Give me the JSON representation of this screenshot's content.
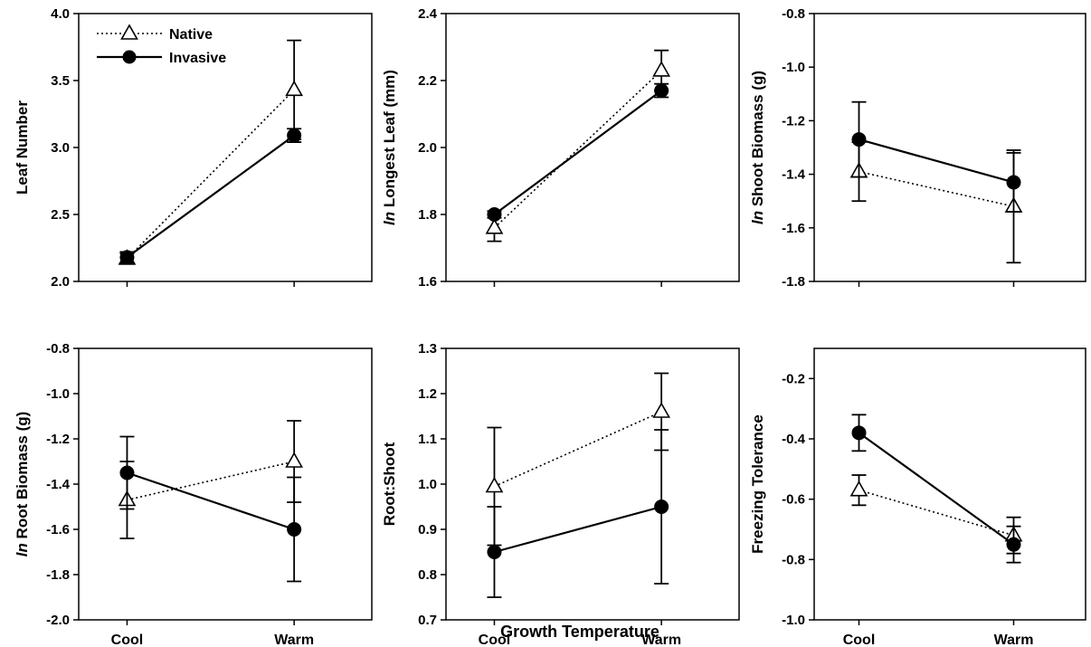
{
  "figure": {
    "xlabel": "Growth Temperature"
  },
  "chart_data": [
    {
      "type": "line",
      "ylabel": "Leaf Number",
      "ylabel_prefix": "",
      "categories": [
        "Cool",
        "Warm"
      ],
      "ylim": [
        2.0,
        4.0
      ],
      "yticks": [
        "2.0",
        "2.5",
        "3.0",
        "3.5",
        "4.0"
      ],
      "legend": "top-left",
      "series": [
        {
          "name": "Native",
          "marker": "open-triangle",
          "line": "dotted",
          "values": [
            2.17,
            3.43
          ],
          "err": [
            0.04,
            0.37
          ]
        },
        {
          "name": "Invasive",
          "marker": "filled-circle",
          "line": "solid",
          "values": [
            2.18,
            3.09
          ],
          "err": [
            0.04,
            0.05
          ]
        }
      ]
    },
    {
      "type": "line",
      "ylabel": "Longest Leaf (mm)",
      "ylabel_prefix": "ln",
      "categories": [
        "Cool",
        "Warm"
      ],
      "ylim": [
        1.6,
        2.4
      ],
      "yticks": [
        "1.6",
        "1.8",
        "2.0",
        "2.2",
        "2.4"
      ],
      "series": [
        {
          "name": "Native",
          "marker": "open-triangle",
          "line": "dotted",
          "values": [
            1.76,
            2.23
          ],
          "err": [
            0.04,
            0.06
          ]
        },
        {
          "name": "Invasive",
          "marker": "filled-circle",
          "line": "solid",
          "values": [
            1.8,
            2.17
          ],
          "err": [
            0.01,
            0.02
          ]
        }
      ]
    },
    {
      "type": "line",
      "ylabel": "Shoot Biomass (g)",
      "ylabel_prefix": "ln",
      "categories": [
        "Cool",
        "Warm"
      ],
      "ylim": [
        -1.8,
        -0.8
      ],
      "yticks": [
        "-1.8",
        "-1.6",
        "-1.4",
        "-1.2",
        "-1.0",
        "-0.8"
      ],
      "series": [
        {
          "name": "Native",
          "marker": "open-triangle",
          "line": "dotted",
          "values": [
            -1.39,
            -1.52
          ],
          "err": [
            0.11,
            0.21
          ]
        },
        {
          "name": "Invasive",
          "marker": "filled-circle",
          "line": "solid",
          "values": [
            -1.27,
            -1.43
          ],
          "err": [
            0.14,
            0.11
          ]
        }
      ]
    },
    {
      "type": "line",
      "ylabel": "Root Biomass (g)",
      "ylabel_prefix": "ln",
      "categories": [
        "Cool",
        "Warm"
      ],
      "ylim": [
        -2.0,
        -0.8
      ],
      "yticks": [
        "-2.0",
        "-1.8",
        "-1.6",
        "-1.4",
        "-1.2",
        "-1.0",
        "-0.8"
      ],
      "series": [
        {
          "name": "Native",
          "marker": "open-triangle",
          "line": "dotted",
          "values": [
            -1.47,
            -1.3
          ],
          "err": [
            0.17,
            0.18
          ]
        },
        {
          "name": "Invasive",
          "marker": "filled-circle",
          "line": "solid",
          "values": [
            -1.35,
            -1.6
          ],
          "err": [
            0.16,
            0.23
          ]
        }
      ]
    },
    {
      "type": "line",
      "ylabel": "Root:Shoot",
      "ylabel_prefix": "",
      "categories": [
        "Cool",
        "Warm"
      ],
      "ylim": [
        0.7,
        1.3
      ],
      "yticks": [
        "0.7",
        "0.8",
        "0.9",
        "1.0",
        "1.1",
        "1.2",
        "1.3"
      ],
      "series": [
        {
          "name": "Native",
          "marker": "open-triangle",
          "line": "dotted",
          "values": [
            0.995,
            1.16
          ],
          "err": [
            0.13,
            0.085
          ]
        },
        {
          "name": "Invasive",
          "marker": "filled-circle",
          "line": "solid",
          "values": [
            0.85,
            0.95
          ],
          "err": [
            0.1,
            0.17
          ]
        }
      ]
    },
    {
      "type": "line",
      "ylabel": "Freezing Tolerance",
      "ylabel_prefix": "",
      "categories": [
        "Cool",
        "Warm"
      ],
      "ylim": [
        -1.0,
        -0.1
      ],
      "yticks": [
        "-1.0",
        "-0.8",
        "-0.6",
        "-0.4",
        "-0.2"
      ],
      "series": [
        {
          "name": "Native",
          "marker": "open-triangle",
          "line": "dotted",
          "values": [
            -0.57,
            -0.72
          ],
          "err": [
            0.05,
            0.06
          ]
        },
        {
          "name": "Invasive",
          "marker": "filled-circle",
          "line": "solid",
          "values": [
            -0.38,
            -0.75
          ],
          "err": [
            0.06,
            0.06
          ]
        }
      ]
    }
  ]
}
